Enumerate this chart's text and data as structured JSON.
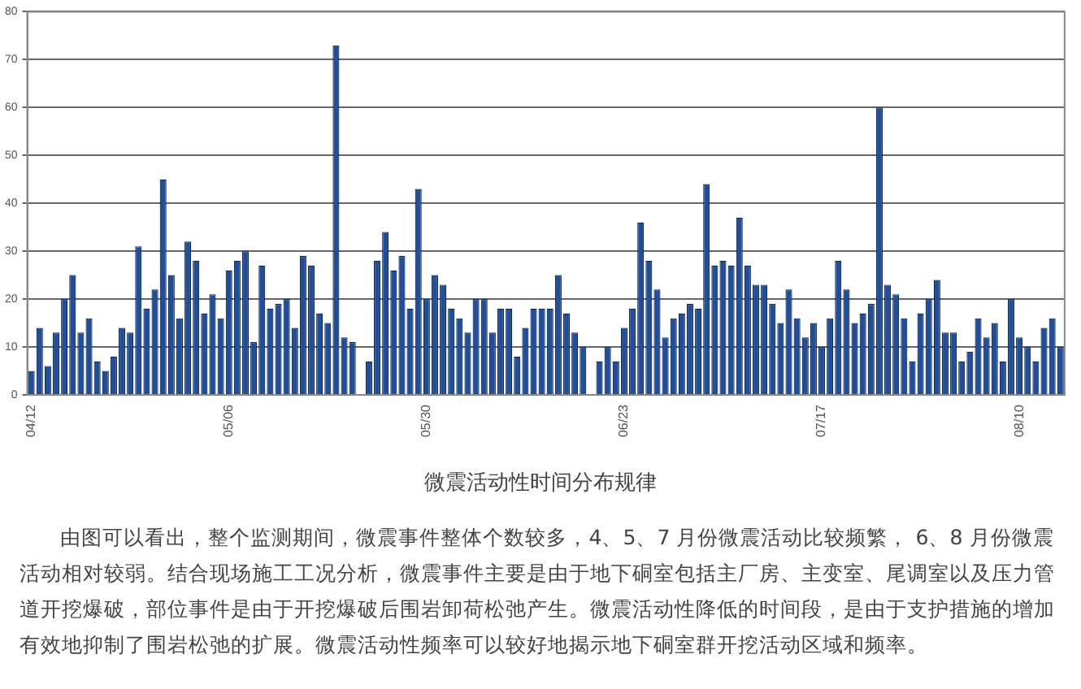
{
  "chart_data": {
    "type": "bar",
    "title": "微震活动性时间分布规律",
    "categories": [
      "04/12",
      null,
      null,
      null,
      null,
      null,
      null,
      null,
      null,
      null,
      null,
      null,
      null,
      null,
      null,
      null,
      null,
      null,
      null,
      null,
      null,
      null,
      null,
      null,
      "05/06",
      null,
      null,
      null,
      null,
      null,
      null,
      null,
      null,
      null,
      null,
      null,
      null,
      null,
      null,
      null,
      null,
      null,
      null,
      null,
      null,
      null,
      null,
      null,
      "05/30",
      null,
      null,
      null,
      null,
      null,
      null,
      null,
      null,
      null,
      null,
      null,
      null,
      null,
      null,
      null,
      null,
      null,
      null,
      null,
      null,
      null,
      null,
      null,
      "06/23",
      null,
      null,
      null,
      null,
      null,
      null,
      null,
      null,
      null,
      null,
      null,
      null,
      null,
      null,
      null,
      null,
      null,
      null,
      null,
      null,
      null,
      null,
      null,
      "07/17",
      null,
      null,
      null,
      null,
      null,
      null,
      null,
      null,
      null,
      null,
      null,
      null,
      null,
      null,
      null,
      null,
      null,
      null,
      null,
      null,
      null,
      null,
      null,
      "08/10",
      null,
      null,
      null,
      null,
      null
    ],
    "values": [
      5,
      14,
      6,
      13,
      20,
      25,
      13,
      16,
      7,
      5,
      8,
      14,
      13,
      31,
      18,
      22,
      45,
      25,
      16,
      32,
      28,
      17,
      21,
      16,
      26,
      28,
      30,
      11,
      27,
      18,
      19,
      20,
      14,
      29,
      27,
      17,
      15,
      73,
      12,
      11,
      0,
      7,
      28,
      34,
      26,
      29,
      18,
      43,
      20,
      25,
      23,
      18,
      16,
      13,
      20,
      20,
      13,
      18,
      18,
      8,
      14,
      18,
      18,
      18,
      25,
      17,
      13,
      10,
      0,
      7,
      10,
      7,
      14,
      18,
      36,
      28,
      22,
      12,
      16,
      17,
      19,
      18,
      44,
      27,
      28,
      27,
      37,
      27,
      23,
      23,
      19,
      15,
      22,
      16,
      12,
      15,
      10,
      16,
      28,
      22,
      15,
      17,
      19,
      60,
      23,
      21,
      16,
      7,
      17,
      20,
      24,
      13,
      13,
      7,
      9,
      16,
      12,
      15,
      7,
      20,
      12,
      10,
      7,
      14,
      16,
      10
    ],
    "color": "#1f4e9c",
    "ylim": [
      0,
      80
    ],
    "yticks": [
      0,
      10,
      20,
      30,
      40,
      50,
      60,
      70,
      80
    ],
    "grid": "y",
    "annotations": [
      "由图可以看出，整个监测期间，微震事件整体个数较多，4、5、7 月份微震活动比较频繁， 6、8 月份微震活动相对较弱。结合现场施工工况分析，微震事件主要是由于地下硐室包括主厂房、主变室、尾调室以及压力管道开挖爆破，部位事件是由于开挖爆破后围岩卸荷松弛产生。微震活动性降低的时间段，是由于支护措施的增加有效地抑制了围岩松弛的扩展。微震活动性频率可以较好地揭示地下硐室群开挖活动区域和频率。"
    ]
  }
}
